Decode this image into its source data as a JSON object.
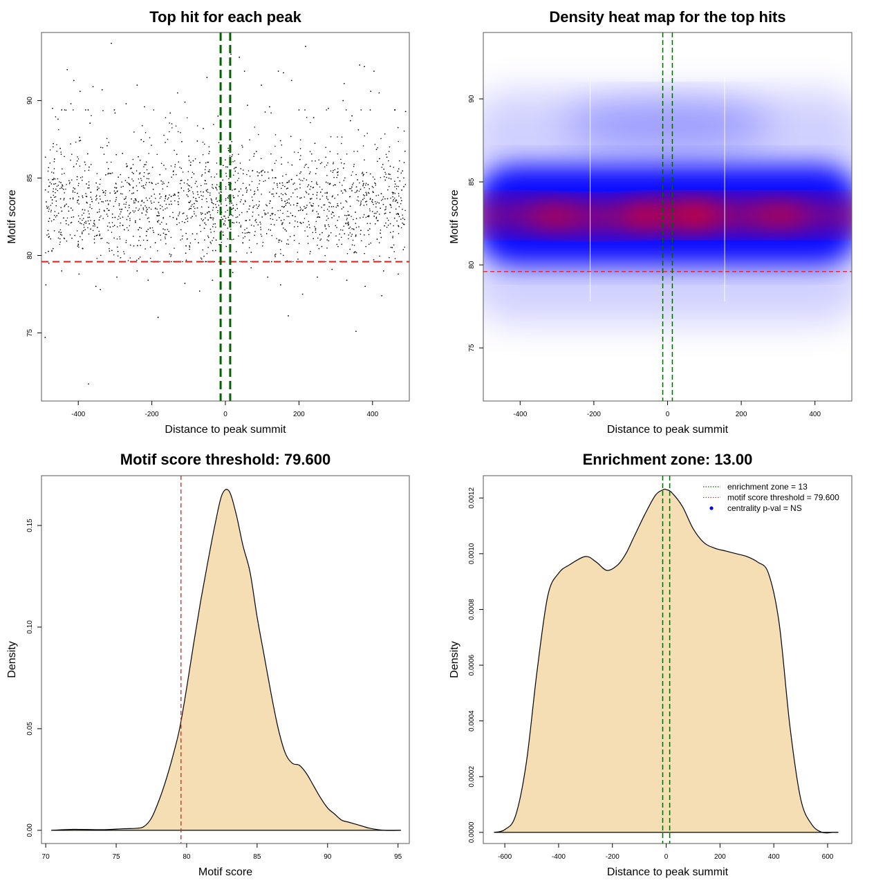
{
  "chart_data": [
    {
      "type": "scatter",
      "title": "Top hit for each peak",
      "xlabel": "Distance to peak summit",
      "ylabel": "Motif score",
      "xlim": [
        -500,
        500
      ],
      "ylim": [
        70.6,
        94.4
      ],
      "xticks": [
        -400,
        -200,
        0,
        200,
        400
      ],
      "xtick_labels": [
        "-400",
        "-200",
        "0",
        "200",
        "400"
      ],
      "yticks": [
        75,
        80,
        85,
        90
      ],
      "ytick_labels": [
        "75",
        "80",
        "85",
        "90"
      ],
      "threshold_y": 79.6,
      "zone_x": [
        -13,
        13
      ],
      "threshold_color": "#e41a1c",
      "zone_color": "#006400",
      "point_color": "#000000",
      "points": [
        [
          -490,
          74.7
        ],
        [
          -372,
          71.7
        ],
        [
          -310,
          93.7
        ],
        [
          218,
          93.5
        ],
        [
          -183,
          76.0
        ],
        [
          171,
          76.1
        ],
        [
          355,
          75.1
        ],
        [
          425,
          77.4
        ],
        [
          -488,
          78.1
        ],
        [
          -400,
          80.9
        ],
        [
          -430,
          92.0
        ],
        [
          -412,
          91.3
        ],
        [
          -395,
          90.6
        ],
        [
          -360,
          90.9
        ],
        [
          -335,
          90.7
        ],
        [
          -240,
          91.0
        ],
        [
          -130,
          90.5
        ],
        [
          -50,
          91.5
        ],
        [
          15,
          93.0
        ],
        [
          38,
          92.8
        ],
        [
          52,
          91.9
        ],
        [
          98,
          91.0
        ],
        [
          144,
          91.9
        ],
        [
          158,
          91.8
        ],
        [
          180,
          91.3
        ],
        [
          323,
          91.1
        ],
        [
          320,
          90.0
        ],
        [
          365,
          92.3
        ],
        [
          378,
          92.2
        ],
        [
          395,
          90.6
        ],
        [
          404,
          91.9
        ],
        [
          418,
          90.5
        ],
        [
          -470,
          89.5
        ],
        [
          -455,
          88.8
        ],
        [
          -420,
          89.8
        ],
        [
          -380,
          89.4
        ],
        [
          -300,
          89.2
        ],
        [
          -270,
          89.8
        ],
        [
          -220,
          89.6
        ],
        [
          -150,
          89.2
        ],
        [
          -110,
          89.9
        ],
        [
          -60,
          88.2
        ],
        [
          -20,
          89.0
        ],
        [
          60,
          89.7
        ],
        [
          120,
          89.6
        ],
        [
          200,
          89.4
        ],
        [
          240,
          88.9
        ],
        [
          280,
          89.5
        ],
        [
          340,
          88.7
        ],
        [
          460,
          89.4
        ],
        [
          490,
          89.3
        ],
        [
          -480,
          79.5
        ],
        [
          -445,
          79.0
        ],
        [
          -398,
          78.8
        ],
        [
          -352,
          78.0
        ],
        [
          -340,
          77.8
        ],
        [
          -295,
          78.6
        ],
        [
          -240,
          79.0
        ],
        [
          -210,
          78.4
        ],
        [
          -170,
          78.9
        ],
        [
          -110,
          78.2
        ],
        [
          -70,
          77.7
        ],
        [
          -35,
          78.4
        ],
        [
          -12,
          77.5
        ],
        [
          20,
          78.9
        ],
        [
          70,
          79.2
        ],
        [
          115,
          78.6
        ],
        [
          150,
          78.1
        ],
        [
          210,
          77.5
        ],
        [
          250,
          78.6
        ],
        [
          290,
          79.1
        ],
        [
          330,
          78.4
        ],
        [
          380,
          78.0
        ],
        [
          430,
          79.0
        ],
        [
          470,
          78.8
        ]
      ]
    },
    {
      "type": "heatmap",
      "title": "Density heat map for the top hits",
      "xlabel": "Distance to peak summit",
      "ylabel": "Motif score",
      "xlim": [
        -500,
        500
      ],
      "ylim": [
        71.8,
        94.0
      ],
      "xticks": [
        -400,
        -200,
        0,
        200,
        400
      ],
      "xtick_labels": [
        "-400",
        "-200",
        "0",
        "200",
        "400"
      ],
      "yticks": [
        75,
        80,
        85,
        90
      ],
      "ytick_labels": [
        "75",
        "80",
        "85",
        "90"
      ],
      "threshold_y": 79.6,
      "zone_x": [
        -13,
        13
      ],
      "threshold_color": "#e41a1c",
      "zone_color": "#006400",
      "colors": [
        "#ffffff",
        "#0000ff",
        "#ff0000"
      ],
      "density_peaks": [
        {
          "x": 10,
          "y": 83.0,
          "level": 1.0
        },
        {
          "x": -200,
          "y": 82.9,
          "level": 0.75
        },
        {
          "x": 200,
          "y": 83.0,
          "level": 0.78
        },
        {
          "x": -420,
          "y": 83.0,
          "level": 0.6
        },
        {
          "x": 420,
          "y": 83.0,
          "level": 0.6
        },
        {
          "x": 0,
          "y": 88.5,
          "level": 0.25
        }
      ]
    },
    {
      "type": "area",
      "title": "Motif score threshold: 79.600",
      "xlabel": "Motif score",
      "ylabel": "Density",
      "xlim": [
        69.7,
        95.8
      ],
      "ylim": [
        -0.0065,
        0.1745
      ],
      "xticks": [
        70,
        75,
        80,
        85,
        90,
        95
      ],
      "xtick_labels": [
        "70",
        "75",
        "80",
        "85",
        "90",
        "95"
      ],
      "yticks": [
        0,
        0.05,
        0.1,
        0.15
      ],
      "ytick_labels": [
        "0.00",
        "0.05",
        "0.10",
        "0.15"
      ],
      "threshold_x": 79.6,
      "threshold_color": "#e41a1c",
      "fill_color": "#f5deb3",
      "x": [
        70.4,
        72.0,
        74.0,
        75.5,
        76.5,
        77.0,
        77.5,
        78.0,
        78.5,
        79.0,
        79.5,
        80.0,
        80.5,
        81.0,
        81.5,
        82.0,
        82.5,
        83.0,
        83.5,
        84.0,
        84.5,
        85.0,
        85.5,
        86.0,
        86.5,
        87.0,
        87.5,
        88.0,
        88.5,
        89.0,
        89.5,
        90.0,
        90.5,
        91.0,
        91.5,
        92.0,
        92.5,
        93.0,
        94.0,
        95.2
      ],
      "y": [
        0.0,
        0.0005,
        0.0003,
        0.0008,
        0.001,
        0.002,
        0.006,
        0.014,
        0.024,
        0.036,
        0.05,
        0.07,
        0.092,
        0.113,
        0.132,
        0.15,
        0.165,
        0.167,
        0.156,
        0.14,
        0.127,
        0.105,
        0.086,
        0.067,
        0.05,
        0.038,
        0.033,
        0.032,
        0.028,
        0.022,
        0.016,
        0.011,
        0.008,
        0.005,
        0.004,
        0.003,
        0.002,
        0.001,
        0.0,
        0.0
      ]
    },
    {
      "type": "area",
      "title": "Enrichment zone: 13.00",
      "xlabel": "Distance to peak summit",
      "ylabel": "Density",
      "xlim": [
        -680,
        690
      ],
      "ylim": [
        -4e-05,
        0.00128
      ],
      "xticks": [
        -600,
        -400,
        -200,
        0,
        200,
        400,
        600
      ],
      "xtick_labels": [
        "-600",
        "-400",
        "-200",
        "0",
        "200",
        "400",
        "600"
      ],
      "yticks": [
        0,
        0.0002,
        0.0004,
        0.0006,
        0.0008,
        0.001,
        0.0012
      ],
      "ytick_labels": [
        "0.0000",
        "0.0002",
        "0.0004",
        "0.0006",
        "0.0008",
        "0.0010",
        "0.0012"
      ],
      "zone_x": [
        -13,
        13
      ],
      "zone_color": "#006400",
      "threshold_color": "#e41a1c",
      "fill_color": "#f5deb3",
      "x": [
        -640,
        -600,
        -560,
        -520,
        -480,
        -440,
        -400,
        -360,
        -300,
        -260,
        -220,
        -180,
        -150,
        -120,
        -80,
        -40,
        -10,
        0,
        20,
        60,
        100,
        140,
        180,
        220,
        260,
        300,
        340,
        380,
        420,
        460,
        500,
        540,
        580,
        620,
        640
      ],
      "y": [
        0.0,
        1e-05,
        6e-05,
        0.00025,
        0.00058,
        0.00085,
        0.00093,
        0.00096,
        0.00099,
        0.00097,
        0.00094,
        0.00096,
        0.001,
        0.00106,
        0.00114,
        0.00121,
        0.00123,
        0.00123,
        0.00122,
        0.00117,
        0.00109,
        0.00104,
        0.00102,
        0.00101,
        0.001,
        0.00099,
        0.00097,
        0.00093,
        0.00075,
        0.00038,
        0.00012,
        3e-05,
        0.0,
        0.0,
        0.0
      ],
      "legend": [
        {
          "label": "enrichment zone = 13",
          "style": "dotted",
          "color": "#006400"
        },
        {
          "label": "motif score threshold = 79.600",
          "style": "dotted",
          "color": "#e41a1c"
        },
        {
          "label": "centrality p-val = NS",
          "style": "point",
          "color": "#0000ff"
        }
      ]
    }
  ]
}
